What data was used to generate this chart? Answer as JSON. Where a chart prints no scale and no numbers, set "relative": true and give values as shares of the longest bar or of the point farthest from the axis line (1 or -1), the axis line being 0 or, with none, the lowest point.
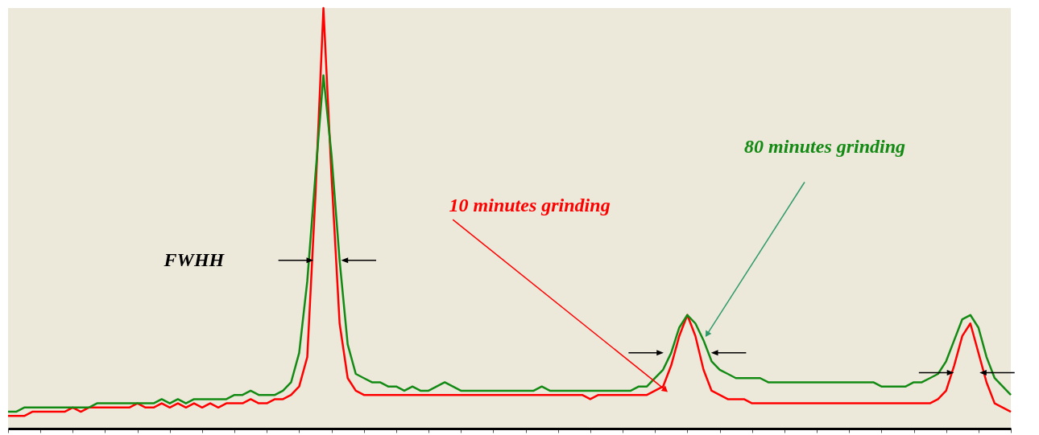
{
  "chart_data": {
    "type": "line",
    "relative": true,
    "legend": false,
    "grid": false,
    "marker": "none",
    "line_style": "solid",
    "categories": [
      null,
      null,
      null,
      null,
      null,
      null,
      null,
      null,
      null,
      null,
      null,
      null,
      null,
      null,
      null,
      null,
      null,
      null,
      null,
      null,
      null,
      null,
      null,
      null,
      null,
      null,
      null,
      null,
      null,
      null,
      null,
      null,
      null,
      null,
      null,
      null,
      null,
      null,
      null,
      null,
      null,
      null,
      null,
      null,
      null,
      null,
      null,
      null,
      null,
      null,
      null,
      null,
      null,
      null,
      null,
      null,
      null,
      null,
      null,
      null,
      null,
      null,
      null,
      null,
      null,
      null,
      null,
      null,
      null,
      null,
      null,
      null,
      null,
      null,
      null,
      null,
      null,
      null,
      null,
      null,
      null,
      null,
      null,
      null,
      null,
      null,
      null,
      null,
      null,
      null,
      null,
      null,
      null,
      null,
      null,
      null,
      null,
      null,
      null,
      null,
      null,
      null,
      null,
      null,
      null,
      null,
      null,
      null,
      null,
      null,
      null,
      null,
      null,
      null,
      null,
      null,
      null,
      null,
      null,
      null,
      null,
      null,
      null,
      null,
      null
    ],
    "series": [
      {
        "color": "#ff0000",
        "values": [
          0.03,
          0.03,
          0.03,
          0.04,
          0.04,
          0.04,
          0.04,
          0.04,
          0.05,
          0.04,
          0.05,
          0.05,
          0.05,
          0.05,
          0.05,
          0.05,
          0.06,
          0.05,
          0.05,
          0.06,
          0.05,
          0.06,
          0.05,
          0.06,
          0.05,
          0.06,
          0.05,
          0.06,
          0.06,
          0.06,
          0.07,
          0.06,
          0.06,
          0.07,
          0.07,
          0.08,
          0.1,
          0.17,
          0.55,
          1.0,
          0.6,
          0.25,
          0.12,
          0.09,
          0.08,
          0.08,
          0.08,
          0.08,
          0.08,
          0.08,
          0.08,
          0.08,
          0.08,
          0.08,
          0.08,
          0.08,
          0.08,
          0.08,
          0.08,
          0.08,
          0.08,
          0.08,
          0.08,
          0.08,
          0.08,
          0.08,
          0.08,
          0.08,
          0.08,
          0.08,
          0.08,
          0.08,
          0.07,
          0.08,
          0.08,
          0.08,
          0.08,
          0.08,
          0.08,
          0.08,
          0.09,
          0.1,
          0.15,
          0.22,
          0.27,
          0.22,
          0.14,
          0.09,
          0.08,
          0.07,
          0.07,
          0.07,
          0.06,
          0.06,
          0.06,
          0.06,
          0.06,
          0.06,
          0.06,
          0.06,
          0.06,
          0.06,
          0.06,
          0.06,
          0.06,
          0.06,
          0.06,
          0.06,
          0.06,
          0.06,
          0.06,
          0.06,
          0.06,
          0.06,
          0.06,
          0.07,
          0.09,
          0.15,
          0.22,
          0.25,
          0.18,
          0.11,
          0.06,
          0.05,
          0.04
        ]
      },
      {
        "color": "#138a13",
        "values": [
          0.04,
          0.04,
          0.05,
          0.05,
          0.05,
          0.05,
          0.05,
          0.05,
          0.05,
          0.05,
          0.05,
          0.06,
          0.06,
          0.06,
          0.06,
          0.06,
          0.06,
          0.06,
          0.06,
          0.07,
          0.06,
          0.07,
          0.06,
          0.07,
          0.07,
          0.07,
          0.07,
          0.07,
          0.08,
          0.08,
          0.09,
          0.08,
          0.08,
          0.08,
          0.09,
          0.11,
          0.18,
          0.35,
          0.6,
          0.84,
          0.65,
          0.4,
          0.2,
          0.13,
          0.12,
          0.11,
          0.11,
          0.1,
          0.1,
          0.09,
          0.1,
          0.09,
          0.09,
          0.1,
          0.11,
          0.1,
          0.09,
          0.09,
          0.09,
          0.09,
          0.09,
          0.09,
          0.09,
          0.09,
          0.09,
          0.09,
          0.1,
          0.09,
          0.09,
          0.09,
          0.09,
          0.09,
          0.09,
          0.09,
          0.09,
          0.09,
          0.09,
          0.09,
          0.1,
          0.1,
          0.12,
          0.14,
          0.18,
          0.24,
          0.27,
          0.25,
          0.21,
          0.16,
          0.14,
          0.13,
          0.12,
          0.12,
          0.12,
          0.12,
          0.11,
          0.11,
          0.11,
          0.11,
          0.11,
          0.11,
          0.11,
          0.11,
          0.11,
          0.11,
          0.11,
          0.11,
          0.11,
          0.11,
          0.1,
          0.1,
          0.1,
          0.1,
          0.11,
          0.11,
          0.12,
          0.13,
          0.16,
          0.21,
          0.26,
          0.27,
          0.24,
          0.17,
          0.12,
          0.1,
          0.08
        ]
      }
    ],
    "annotations": [
      "FWHH",
      "10 minutes grinding",
      "80 minutes grinding"
    ]
  }
}
